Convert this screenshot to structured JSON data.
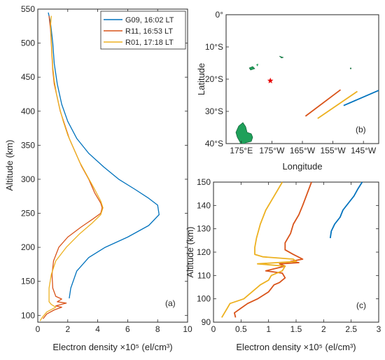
{
  "chart_data": [
    {
      "id": "a",
      "type": "line",
      "panel_label": "(a)",
      "xlabel": "Electron density ×10⁵ (el/cm³)",
      "ylabel": "Altitude (km)",
      "xlim": [
        0,
        10
      ],
      "ylim": [
        90,
        550
      ],
      "xticks": [
        0,
        2,
        4,
        6,
        8,
        10
      ],
      "yticks": [
        100,
        150,
        200,
        250,
        300,
        350,
        400,
        450,
        500,
        550
      ],
      "legend": "top-right",
      "series": [
        {
          "name": "G09, 16:02 LT",
          "color": "#0072BD",
          "points": [
            [
              2.1,
              125
            ],
            [
              2.2,
              140
            ],
            [
              2.6,
              165
            ],
            [
              3.4,
              185
            ],
            [
              4.5,
              200
            ],
            [
              6.0,
              215
            ],
            [
              7.4,
              232
            ],
            [
              8.1,
              248
            ],
            [
              8.0,
              262
            ],
            [
              7.4,
              272
            ],
            [
              6.5,
              285
            ],
            [
              5.4,
              300
            ],
            [
              4.4,
              318
            ],
            [
              3.4,
              338
            ],
            [
              2.6,
              360
            ],
            [
              2.0,
              385
            ],
            [
              1.6,
              410
            ],
            [
              1.3,
              440
            ],
            [
              1.1,
              470
            ],
            [
              1.0,
              500
            ],
            [
              0.85,
              530
            ],
            [
              0.7,
              545
            ]
          ]
        },
        {
          "name": "R11, 16:53 LT",
          "color": "#D95319",
          "points": [
            [
              0.35,
              95
            ],
            [
              0.6,
              102
            ],
            [
              1.1,
              108
            ],
            [
              1.6,
              112
            ],
            [
              1.2,
              114
            ],
            [
              1.9,
              118
            ],
            [
              1.3,
              120
            ],
            [
              1.6,
              124
            ],
            [
              1.2,
              128
            ],
            [
              1.0,
              140
            ],
            [
              0.95,
              160
            ],
            [
              1.05,
              180
            ],
            [
              1.4,
              200
            ],
            [
              2.0,
              215
            ],
            [
              2.9,
              230
            ],
            [
              3.7,
              242
            ],
            [
              4.2,
              250
            ],
            [
              4.3,
              258
            ],
            [
              4.2,
              265
            ],
            [
              3.8,
              280
            ],
            [
              3.4,
              300
            ],
            [
              2.9,
              320
            ],
            [
              2.5,
              340
            ],
            [
              2.1,
              360
            ],
            [
              1.8,
              380
            ],
            [
              1.5,
              400
            ],
            [
              1.3,
              420
            ],
            [
              1.1,
              440
            ],
            [
              1.0,
              460
            ],
            [
              0.95,
              480
            ],
            [
              0.9,
              500
            ],
            [
              0.85,
              520
            ],
            [
              0.8,
              530
            ],
            [
              0.75,
              540
            ]
          ]
        },
        {
          "name": "R01, 17:18 LT",
          "color": "#EDB120",
          "points": [
            [
              0.15,
              92
            ],
            [
              0.3,
              97
            ],
            [
              0.6,
              105
            ],
            [
              1.2,
              112
            ],
            [
              0.9,
              116
            ],
            [
              0.75,
              120
            ],
            [
              0.75,
              140
            ],
            [
              0.9,
              160
            ],
            [
              1.2,
              180
            ],
            [
              1.9,
              200
            ],
            [
              2.8,
              220
            ],
            [
              3.6,
              235
            ],
            [
              4.2,
              248
            ],
            [
              4.35,
              258
            ],
            [
              4.2,
              268
            ],
            [
              3.8,
              285
            ],
            [
              3.3,
              305
            ],
            [
              2.8,
              325
            ],
            [
              2.4,
              345
            ],
            [
              2.0,
              365
            ],
            [
              1.7,
              385
            ],
            [
              1.45,
              405
            ],
            [
              1.25,
              425
            ],
            [
              1.1,
              445
            ],
            [
              1.0,
              465
            ],
            [
              0.95,
              485
            ],
            [
              0.9,
              505
            ],
            [
              0.85,
              525
            ],
            [
              0.9,
              540
            ]
          ]
        }
      ]
    },
    {
      "id": "b",
      "type": "map",
      "panel_label": "(b)",
      "xlabel": "Longitude",
      "ylabel": "Latitude",
      "xticks": [
        "175°E",
        "175°W",
        "165°W",
        "155°W",
        "145°W"
      ],
      "yticks": [
        "0°",
        "10°S",
        "20°S",
        "30°S",
        "40°S"
      ],
      "xlim": [
        170,
        220
      ],
      "ylim": [
        -40,
        0
      ],
      "land_color": "#1FA05A",
      "marker": {
        "symbol": "star",
        "color": "#E60000",
        "lon": 184.5,
        "lat": -20.5
      },
      "tracks": [
        {
          "series": "G09",
          "color": "#0072BD",
          "points": [
            [
              208.5,
              -28.2
            ],
            [
              220,
              -23.5
            ]
          ]
        },
        {
          "series": "R11",
          "color": "#D95319",
          "points": [
            [
              196,
              -31.5
            ],
            [
              207.5,
              -23.3
            ]
          ]
        },
        {
          "series": "R01",
          "color": "#EDB120",
          "points": [
            [
              200,
              -32.2
            ],
            [
              213,
              -23.8
            ]
          ]
        }
      ]
    },
    {
      "id": "c",
      "type": "line",
      "panel_label": "(c)",
      "xlabel": "Electron density ×10⁵ (el/cm³)",
      "ylabel": "Altitude (km)",
      "xlim": [
        0,
        3
      ],
      "ylim": [
        90,
        150
      ],
      "xticks": [
        0,
        0.5,
        1,
        1.5,
        2,
        2.5,
        3
      ],
      "yticks": [
        90,
        100,
        110,
        120,
        130,
        140,
        150
      ],
      "series": [
        {
          "name": "G09",
          "color": "#0072BD",
          "points": [
            [
              2.12,
              126
            ],
            [
              2.14,
              129
            ],
            [
              2.2,
              132
            ],
            [
              2.3,
              135
            ],
            [
              2.35,
              138
            ],
            [
              2.45,
              141
            ],
            [
              2.55,
              144
            ],
            [
              2.62,
              147
            ],
            [
              2.7,
              150
            ]
          ]
        },
        {
          "name": "R11",
          "color": "#D95319",
          "points": [
            [
              0.4,
              92
            ],
            [
              0.38,
              94
            ],
            [
              0.5,
              96
            ],
            [
              0.62,
              98
            ],
            [
              0.8,
              100
            ],
            [
              1.0,
              103
            ],
            [
              1.1,
              106
            ],
            [
              1.2,
              107
            ],
            [
              1.3,
              109
            ],
            [
              1.25,
              111
            ],
            [
              0.95,
              112
            ],
            [
              1.3,
              114
            ],
            [
              1.2,
              115
            ],
            [
              1.55,
              115.5
            ],
            [
              1.4,
              116
            ],
            [
              1.62,
              117
            ],
            [
              1.45,
              119
            ],
            [
              1.3,
              121
            ],
            [
              1.3,
              124
            ],
            [
              1.4,
              128
            ],
            [
              1.45,
              132
            ],
            [
              1.55,
              136
            ],
            [
              1.62,
              140
            ],
            [
              1.7,
              145
            ],
            [
              1.78,
              150
            ]
          ]
        },
        {
          "name": "R01",
          "color": "#EDB120",
          "points": [
            [
              0.15,
              92
            ],
            [
              0.25,
              96
            ],
            [
              0.3,
              98
            ],
            [
              0.55,
              100
            ],
            [
              0.7,
              103
            ],
            [
              0.85,
              106
            ],
            [
              1.0,
              108
            ],
            [
              1.05,
              110
            ],
            [
              1.25,
              112
            ],
            [
              1.3,
              114
            ],
            [
              0.8,
              115
            ],
            [
              1.5,
              116
            ],
            [
              1.45,
              117
            ],
            [
              0.9,
              118
            ],
            [
              0.75,
              119
            ],
            [
              0.75,
              122
            ],
            [
              0.78,
              126
            ],
            [
              0.85,
              132
            ],
            [
              0.95,
              138
            ],
            [
              1.05,
              142
            ],
            [
              1.15,
              146
            ],
            [
              1.25,
              150
            ]
          ]
        }
      ]
    }
  ]
}
